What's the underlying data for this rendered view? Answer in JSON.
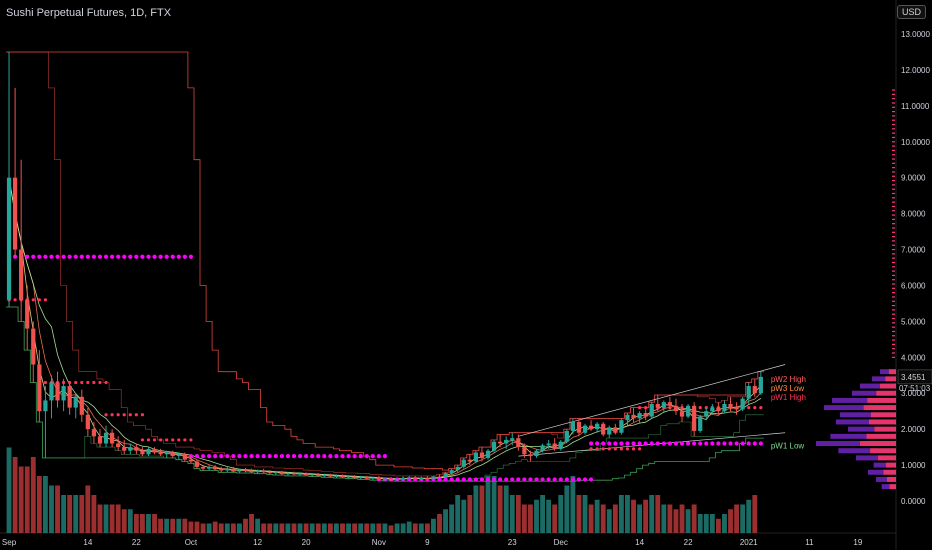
{
  "header": {
    "title": "Sushi Perpetual Futures, 1D, FTX",
    "currency": "USD"
  },
  "colors": {
    "background": "#000000",
    "up": "#26a69a",
    "down": "#ef5350",
    "volume_up": "#1b6b64",
    "volume_down": "#9b2f2f",
    "magenta": "#ff00ff",
    "pivot_red": "#ff3355",
    "resistance": "#e0453d",
    "support": "#3d9a52",
    "profile_purple": "#6a23b6",
    "profile_pink": "#ff3a7a"
  },
  "chart_data": {
    "type": "candlestick",
    "title": "Sushi Perpetual Futures, 1D, FTX",
    "ylim": [
      0,
      13
    ],
    "yticks": [
      "0.0000",
      "1.0000",
      "2.0000",
      "3.0000",
      "4.0000",
      "5.0000",
      "6.0000",
      "7.0000",
      "8.0000",
      "9.0000",
      "10.0000",
      "11.0000",
      "12.0000",
      "13.0000"
    ],
    "xticks": [
      "Sep",
      "14",
      "22",
      "Oct",
      "12",
      "20",
      "Nov",
      "9",
      "23",
      "Dec",
      "14",
      "22",
      "2021",
      "11",
      "19"
    ],
    "last_price": "3.4551",
    "countdown": "07:51:03",
    "labels": {
      "pw2_high": "pW2 High",
      "pw3_low": "pW3 Low",
      "pw1_high": "pW1 High",
      "pw1_low": "pW1 Low"
    },
    "candles": [
      {
        "d": "Sep 1",
        "o": 5.6,
        "h": 12.5,
        "l": 5.4,
        "c": 9.0
      },
      {
        "d": "Sep 2",
        "o": 9.0,
        "h": 11.5,
        "l": 6.8,
        "c": 7.0
      },
      {
        "d": "Sep 3",
        "o": 7.0,
        "h": 9.5,
        "l": 5.0,
        "c": 5.6
      },
      {
        "d": "Sep 4",
        "o": 5.6,
        "h": 6.0,
        "l": 4.2,
        "c": 4.8
      },
      {
        "d": "Sep 5",
        "o": 4.8,
        "h": 5.0,
        "l": 3.3,
        "c": 3.8
      },
      {
        "d": "Sep 6",
        "o": 3.8,
        "h": 4.2,
        "l": 2.2,
        "c": 2.5
      },
      {
        "d": "Sep 7",
        "o": 2.5,
        "h": 3.2,
        "l": 1.2,
        "c": 2.8
      },
      {
        "d": "Sep 8",
        "o": 2.8,
        "h": 3.5,
        "l": 2.3,
        "c": 3.3
      },
      {
        "d": "Sep 9",
        "o": 3.3,
        "h": 3.6,
        "l": 2.6,
        "c": 2.8
      },
      {
        "d": "Sep 10",
        "o": 2.8,
        "h": 3.4,
        "l": 2.5,
        "c": 3.2
      },
      {
        "d": "Sep 11",
        "o": 3.2,
        "h": 3.3,
        "l": 2.4,
        "c": 2.6
      },
      {
        "d": "Sep 12",
        "o": 2.6,
        "h": 3.0,
        "l": 2.3,
        "c": 2.9
      },
      {
        "d": "Sep 13",
        "o": 2.9,
        "h": 3.1,
        "l": 2.2,
        "c": 2.4
      },
      {
        "d": "Sep 14",
        "o": 2.4,
        "h": 2.6,
        "l": 1.8,
        "c": 2.0
      },
      {
        "d": "Sep 15",
        "o": 2.0,
        "h": 2.2,
        "l": 1.6,
        "c": 1.8
      },
      {
        "d": "Sep 16",
        "o": 1.8,
        "h": 2.0,
        "l": 1.5,
        "c": 1.6
      },
      {
        "d": "Sep 17",
        "o": 1.6,
        "h": 2.1,
        "l": 1.5,
        "c": 1.9
      },
      {
        "d": "Sep 18",
        "o": 1.9,
        "h": 2.0,
        "l": 1.5,
        "c": 1.6
      },
      {
        "d": "Sep 19",
        "o": 1.6,
        "h": 1.8,
        "l": 1.4,
        "c": 1.5
      },
      {
        "d": "Sep 20",
        "o": 1.5,
        "h": 1.7,
        "l": 1.3,
        "c": 1.4
      },
      {
        "d": "Sep 21",
        "o": 1.4,
        "h": 1.6,
        "l": 1.3,
        "c": 1.5
      },
      {
        "d": "Sep 22",
        "o": 1.5,
        "h": 1.6,
        "l": 1.3,
        "c": 1.4
      },
      {
        "d": "Sep 23",
        "o": 1.4,
        "h": 1.5,
        "l": 1.25,
        "c": 1.3
      },
      {
        "d": "Sep 24",
        "o": 1.3,
        "h": 1.5,
        "l": 1.25,
        "c": 1.45
      },
      {
        "d": "Sep 25",
        "o": 1.45,
        "h": 1.5,
        "l": 1.3,
        "c": 1.35
      },
      {
        "d": "Sep 26",
        "o": 1.35,
        "h": 1.45,
        "l": 1.25,
        "c": 1.3
      },
      {
        "d": "Sep 27",
        "o": 1.3,
        "h": 1.4,
        "l": 1.2,
        "c": 1.35
      },
      {
        "d": "Sep 28",
        "o": 1.35,
        "h": 1.4,
        "l": 1.2,
        "c": 1.25
      },
      {
        "d": "Sep 29",
        "o": 1.25,
        "h": 1.35,
        "l": 1.15,
        "c": 1.3
      },
      {
        "d": "Sep 30",
        "o": 1.3,
        "h": 1.35,
        "l": 1.1,
        "c": 1.15
      },
      {
        "d": "Oct 1",
        "o": 1.15,
        "h": 1.25,
        "l": 1.05,
        "c": 1.1
      },
      {
        "d": "Oct 2",
        "o": 1.1,
        "h": 1.15,
        "l": 0.9,
        "c": 0.95
      },
      {
        "d": "Oct 3",
        "o": 0.95,
        "h": 1.0,
        "l": 0.85,
        "c": 0.9
      },
      {
        "d": "Oct 4",
        "o": 0.9,
        "h": 1.0,
        "l": 0.85,
        "c": 0.95
      },
      {
        "d": "Oct 5",
        "o": 0.95,
        "h": 1.0,
        "l": 0.85,
        "c": 0.88
      },
      {
        "d": "Oct 6",
        "o": 0.88,
        "h": 0.95,
        "l": 0.8,
        "c": 0.85
      },
      {
        "d": "Oct 7",
        "o": 0.85,
        "h": 0.95,
        "l": 0.8,
        "c": 0.9
      },
      {
        "d": "Oct 8",
        "o": 0.9,
        "h": 0.95,
        "l": 0.8,
        "c": 0.82
      },
      {
        "d": "Oct 9",
        "o": 0.82,
        "h": 0.9,
        "l": 0.78,
        "c": 0.86
      },
      {
        "d": "Oct 10",
        "o": 0.86,
        "h": 0.92,
        "l": 0.8,
        "c": 0.84
      },
      {
        "d": "Oct 11",
        "o": 0.84,
        "h": 0.9,
        "l": 0.78,
        "c": 0.8
      },
      {
        "d": "Oct 12",
        "o": 0.8,
        "h": 0.88,
        "l": 0.76,
        "c": 0.85
      },
      {
        "d": "Oct 13",
        "o": 0.85,
        "h": 0.9,
        "l": 0.78,
        "c": 0.8
      },
      {
        "d": "Oct 14",
        "o": 0.8,
        "h": 0.86,
        "l": 0.74,
        "c": 0.78
      },
      {
        "d": "Oct 15",
        "o": 0.78,
        "h": 0.84,
        "l": 0.72,
        "c": 0.8
      },
      {
        "d": "Oct 16",
        "o": 0.8,
        "h": 0.84,
        "l": 0.72,
        "c": 0.75
      },
      {
        "d": "Oct 17",
        "o": 0.75,
        "h": 0.8,
        "l": 0.7,
        "c": 0.77
      },
      {
        "d": "Oct 18",
        "o": 0.77,
        "h": 0.82,
        "l": 0.72,
        "c": 0.74
      },
      {
        "d": "Oct 19",
        "o": 0.74,
        "h": 0.8,
        "l": 0.7,
        "c": 0.76
      },
      {
        "d": "Oct 20",
        "o": 0.76,
        "h": 0.8,
        "l": 0.7,
        "c": 0.72
      },
      {
        "d": "Oct 21",
        "o": 0.72,
        "h": 0.78,
        "l": 0.68,
        "c": 0.74
      },
      {
        "d": "Oct 22",
        "o": 0.74,
        "h": 0.78,
        "l": 0.68,
        "c": 0.7
      },
      {
        "d": "Oct 23",
        "o": 0.7,
        "h": 0.76,
        "l": 0.66,
        "c": 0.72
      },
      {
        "d": "Oct 24",
        "o": 0.72,
        "h": 0.76,
        "l": 0.66,
        "c": 0.68
      },
      {
        "d": "Oct 25",
        "o": 0.68,
        "h": 0.74,
        "l": 0.64,
        "c": 0.7
      },
      {
        "d": "Oct 26",
        "o": 0.7,
        "h": 0.74,
        "l": 0.64,
        "c": 0.66
      },
      {
        "d": "Oct 27",
        "o": 0.66,
        "h": 0.72,
        "l": 0.62,
        "c": 0.68
      },
      {
        "d": "Oct 28",
        "o": 0.68,
        "h": 0.72,
        "l": 0.62,
        "c": 0.64
      },
      {
        "d": "Oct 29",
        "o": 0.64,
        "h": 0.7,
        "l": 0.6,
        "c": 0.66
      },
      {
        "d": "Oct 30",
        "o": 0.66,
        "h": 0.7,
        "l": 0.6,
        "c": 0.62
      },
      {
        "d": "Oct 31",
        "o": 0.62,
        "h": 0.68,
        "l": 0.58,
        "c": 0.65
      },
      {
        "d": "Nov 1",
        "o": 0.65,
        "h": 0.7,
        "l": 0.58,
        "c": 0.6
      },
      {
        "d": "Nov 2",
        "o": 0.6,
        "h": 0.66,
        "l": 0.56,
        "c": 0.62
      },
      {
        "d": "Nov 3",
        "o": 0.62,
        "h": 0.66,
        "l": 0.56,
        "c": 0.58
      },
      {
        "d": "Nov 4",
        "o": 0.58,
        "h": 0.64,
        "l": 0.55,
        "c": 0.61
      },
      {
        "d": "Nov 5",
        "o": 0.61,
        "h": 0.68,
        "l": 0.56,
        "c": 0.64
      },
      {
        "d": "Nov 6",
        "o": 0.64,
        "h": 0.7,
        "l": 0.6,
        "c": 0.66
      },
      {
        "d": "Nov 7",
        "o": 0.66,
        "h": 0.7,
        "l": 0.6,
        "c": 0.62
      },
      {
        "d": "Nov 8",
        "o": 0.62,
        "h": 0.68,
        "l": 0.58,
        "c": 0.64
      },
      {
        "d": "Nov 9",
        "o": 0.64,
        "h": 0.7,
        "l": 0.6,
        "c": 0.62
      },
      {
        "d": "Nov 10",
        "o": 0.62,
        "h": 0.7,
        "l": 0.58,
        "c": 0.68
      },
      {
        "d": "Nov 11",
        "o": 0.68,
        "h": 0.74,
        "l": 0.62,
        "c": 0.66
      },
      {
        "d": "Nov 12",
        "o": 0.66,
        "h": 0.8,
        "l": 0.64,
        "c": 0.78
      },
      {
        "d": "Nov 13",
        "o": 0.78,
        "h": 0.9,
        "l": 0.72,
        "c": 0.86
      },
      {
        "d": "Nov 14",
        "o": 0.86,
        "h": 1.0,
        "l": 0.8,
        "c": 0.95
      },
      {
        "d": "Nov 15",
        "o": 0.95,
        "h": 1.2,
        "l": 0.9,
        "c": 1.15
      },
      {
        "d": "Nov 16",
        "o": 1.15,
        "h": 1.3,
        "l": 1.0,
        "c": 1.1
      },
      {
        "d": "Nov 17",
        "o": 1.1,
        "h": 1.4,
        "l": 1.05,
        "c": 1.35
      },
      {
        "d": "Nov 18",
        "o": 1.35,
        "h": 1.5,
        "l": 1.1,
        "c": 1.2
      },
      {
        "d": "Nov 19",
        "o": 1.2,
        "h": 1.45,
        "l": 1.15,
        "c": 1.4
      },
      {
        "d": "Nov 20",
        "o": 1.4,
        "h": 1.7,
        "l": 1.35,
        "c": 1.65
      },
      {
        "d": "Nov 21",
        "o": 1.65,
        "h": 1.85,
        "l": 1.5,
        "c": 1.6
      },
      {
        "d": "Nov 22",
        "o": 1.6,
        "h": 1.8,
        "l": 1.45,
        "c": 1.7
      },
      {
        "d": "Nov 23",
        "o": 1.7,
        "h": 1.9,
        "l": 1.55,
        "c": 1.75
      },
      {
        "d": "Nov 24",
        "o": 1.75,
        "h": 1.85,
        "l": 1.4,
        "c": 1.5
      },
      {
        "d": "Nov 25",
        "o": 1.5,
        "h": 1.6,
        "l": 1.2,
        "c": 1.3
      },
      {
        "d": "Nov 26",
        "o": 1.3,
        "h": 1.4,
        "l": 1.1,
        "c": 1.25
      },
      {
        "d": "Nov 27",
        "o": 1.25,
        "h": 1.45,
        "l": 1.2,
        "c": 1.4
      },
      {
        "d": "Nov 28",
        "o": 1.4,
        "h": 1.6,
        "l": 1.35,
        "c": 1.55
      },
      {
        "d": "Nov 29",
        "o": 1.55,
        "h": 1.7,
        "l": 1.45,
        "c": 1.6
      },
      {
        "d": "Nov 30",
        "o": 1.6,
        "h": 1.75,
        "l": 1.4,
        "c": 1.45
      },
      {
        "d": "Dec 1",
        "o": 1.45,
        "h": 1.7,
        "l": 1.4,
        "c": 1.65
      },
      {
        "d": "Dec 2",
        "o": 1.65,
        "h": 2.0,
        "l": 1.6,
        "c": 1.95
      },
      {
        "d": "Dec 3",
        "o": 1.95,
        "h": 2.3,
        "l": 1.85,
        "c": 2.2
      },
      {
        "d": "Dec 4",
        "o": 2.2,
        "h": 2.3,
        "l": 1.8,
        "c": 1.9
      },
      {
        "d": "Dec 5",
        "o": 1.9,
        "h": 2.15,
        "l": 1.85,
        "c": 2.1
      },
      {
        "d": "Dec 6",
        "o": 2.1,
        "h": 2.25,
        "l": 1.95,
        "c": 2.0
      },
      {
        "d": "Dec 7",
        "o": 2.0,
        "h": 2.2,
        "l": 1.9,
        "c": 2.15
      },
      {
        "d": "Dec 8",
        "o": 2.15,
        "h": 2.2,
        "l": 1.8,
        "c": 1.85
      },
      {
        "d": "Dec 9",
        "o": 1.85,
        "h": 2.1,
        "l": 1.75,
        "c": 2.05
      },
      {
        "d": "Dec 10",
        "o": 2.05,
        "h": 2.15,
        "l": 1.85,
        "c": 1.9
      },
      {
        "d": "Dec 11",
        "o": 1.9,
        "h": 2.3,
        "l": 1.85,
        "c": 2.25
      },
      {
        "d": "Dec 12",
        "o": 2.25,
        "h": 2.45,
        "l": 2.1,
        "c": 2.4
      },
      {
        "d": "Dec 13",
        "o": 2.4,
        "h": 2.6,
        "l": 2.2,
        "c": 2.3
      },
      {
        "d": "Dec 14",
        "o": 2.3,
        "h": 2.5,
        "l": 2.15,
        "c": 2.45
      },
      {
        "d": "Dec 15",
        "o": 2.45,
        "h": 2.55,
        "l": 2.25,
        "c": 2.35
      },
      {
        "d": "Dec 16",
        "o": 2.35,
        "h": 2.75,
        "l": 2.3,
        "c": 2.7
      },
      {
        "d": "Dec 17",
        "o": 2.7,
        "h": 2.95,
        "l": 2.5,
        "c": 2.6
      },
      {
        "d": "Dec 18",
        "o": 2.6,
        "h": 2.8,
        "l": 2.45,
        "c": 2.75
      },
      {
        "d": "Dec 19",
        "o": 2.75,
        "h": 2.9,
        "l": 2.55,
        "c": 2.65
      },
      {
        "d": "Dec 20",
        "o": 2.65,
        "h": 2.85,
        "l": 2.4,
        "c": 2.5
      },
      {
        "d": "Dec 21",
        "o": 2.5,
        "h": 2.7,
        "l": 2.2,
        "c": 2.35
      },
      {
        "d": "Dec 22",
        "o": 2.35,
        "h": 2.7,
        "l": 2.3,
        "c": 2.65
      },
      {
        "d": "Dec 23",
        "o": 2.65,
        "h": 2.75,
        "l": 1.8,
        "c": 1.95
      },
      {
        "d": "Dec 24",
        "o": 1.95,
        "h": 2.4,
        "l": 1.9,
        "c": 2.35
      },
      {
        "d": "Dec 25",
        "o": 2.35,
        "h": 2.6,
        "l": 2.25,
        "c": 2.5
      },
      {
        "d": "Dec 26",
        "o": 2.5,
        "h": 2.7,
        "l": 2.4,
        "c": 2.6
      },
      {
        "d": "Dec 27",
        "o": 2.6,
        "h": 2.75,
        "l": 2.4,
        "c": 2.5
      },
      {
        "d": "Dec 28",
        "o": 2.5,
        "h": 2.8,
        "l": 2.45,
        "c": 2.7
      },
      {
        "d": "Dec 29",
        "o": 2.7,
        "h": 2.9,
        "l": 2.5,
        "c": 2.6
      },
      {
        "d": "Dec 30",
        "o": 2.6,
        "h": 2.75,
        "l": 2.4,
        "c": 2.55
      },
      {
        "d": "Dec 31",
        "o": 2.55,
        "h": 2.9,
        "l": 2.5,
        "c": 2.85
      },
      {
        "d": "Jan 1",
        "o": 2.85,
        "h": 3.3,
        "l": 2.7,
        "c": 3.2
      },
      {
        "d": "Jan 2",
        "o": 3.2,
        "h": 3.4,
        "l": 2.9,
        "c": 3.0
      },
      {
        "d": "Jan 3",
        "o": 3.0,
        "h": 3.6,
        "l": 2.95,
        "c": 3.4551
      }
    ],
    "volume": [
      9,
      8,
      7,
      7,
      8,
      6,
      6,
      5,
      5,
      4,
      4,
      4,
      4,
      5,
      4,
      3,
      3,
      3,
      3,
      2.5,
      2.5,
      2,
      2,
      2,
      2,
      1.5,
      1.5,
      1.5,
      1.5,
      1.5,
      1.2,
      1.2,
      1,
      1,
      1.2,
      1,
      1,
      1,
      1,
      1.5,
      2,
      1.5,
      1,
      1,
      1,
      1,
      1,
      1,
      1,
      1,
      1,
      1,
      1,
      1,
      1,
      1,
      1,
      1,
      1,
      1,
      1,
      1,
      1,
      0.8,
      1,
      1,
      1.2,
      1,
      1,
      1,
      1.5,
      2,
      2.5,
      3,
      4,
      3.5,
      4,
      5,
      5,
      6,
      6,
      5,
      5,
      4,
      4,
      3,
      3,
      3.5,
      4,
      3.5,
      3,
      4,
      5,
      6,
      4,
      4,
      3,
      3.5,
      3,
      2.5,
      3,
      4,
      4,
      3.5,
      3,
      3.5,
      4,
      4,
      3,
      3,
      2.5,
      3,
      2.5,
      3,
      2,
      2,
      2,
      1.5,
      2,
      2.5,
      3,
      3,
      3.5,
      4
    ]
  }
}
